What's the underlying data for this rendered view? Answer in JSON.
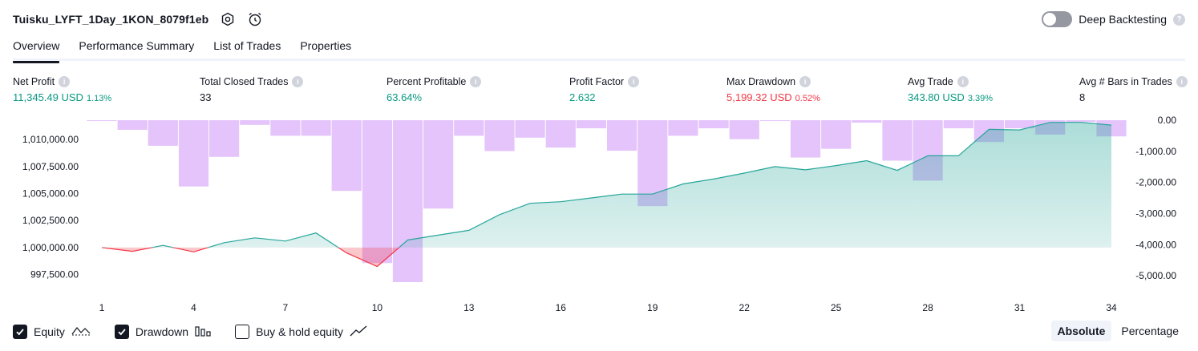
{
  "header": {
    "title": "Tuisku_LYFT_1Day_1KON_8079f1eb",
    "deep_backtesting_label": "Deep Backtesting",
    "help_glyph": "?"
  },
  "tabs": [
    {
      "label": "Overview",
      "active": true
    },
    {
      "label": "Performance Summary",
      "active": false
    },
    {
      "label": "List of Trades",
      "active": false
    },
    {
      "label": "Properties",
      "active": false
    }
  ],
  "metrics": {
    "info_glyph": "i",
    "net_profit": {
      "label": "Net Profit",
      "value": "11,345.49 USD",
      "pct": "1.13%"
    },
    "total_closed_trades": {
      "label": "Total Closed Trades",
      "value": "33"
    },
    "percent_profitable": {
      "label": "Percent Profitable",
      "value": "63.64%"
    },
    "profit_factor": {
      "label": "Profit Factor",
      "value": "2.632"
    },
    "max_drawdown": {
      "label": "Max Drawdown",
      "value": "5,199.32 USD",
      "pct": "0.52%"
    },
    "avg_trade": {
      "label": "Avg Trade",
      "value": "343.80 USD",
      "pct": "3.39%"
    },
    "avg_bars": {
      "label": "Avg # Bars in Trades",
      "value": "8"
    }
  },
  "colors": {
    "positive": "#089981",
    "negative": "#f23645",
    "drawdown_bar": "#ce93f8",
    "equity_fill": "#26a69a"
  },
  "chart_data": {
    "type": "line",
    "x": [
      1,
      2,
      3,
      4,
      5,
      6,
      7,
      8,
      9,
      10,
      11,
      12,
      13,
      14,
      15,
      16,
      17,
      18,
      19,
      20,
      21,
      22,
      23,
      24,
      25,
      26,
      27,
      28,
      29,
      30,
      31,
      32,
      33,
      34
    ],
    "x_ticks": [
      "1",
      "4",
      "7",
      "10",
      "13",
      "16",
      "19",
      "22",
      "25",
      "28",
      "31",
      "34"
    ],
    "baseline": 1000000,
    "series": [
      {
        "axis": "left",
        "values": [
          1000000,
          999650,
          1000200,
          999600,
          1000450,
          1000900,
          1000600,
          1001350,
          999500,
          998250,
          1000700,
          1001150,
          1001600,
          1003050,
          1004100,
          1004250,
          1004600,
          1004950,
          1004950,
          1005900,
          1006350,
          1006900,
          1007500,
          1007200,
          1007600,
          1008050,
          1007150,
          1008500,
          1008500,
          1010950,
          1010900,
          1011600,
          1011600,
          1011350
        ]
      },
      {
        "axis": "right",
        "values": [
          0,
          -310,
          -820,
          -2130,
          -1180,
          -150,
          -500,
          -500,
          -2270,
          -4590,
          -5199.32,
          -2840,
          -500,
          -990,
          -560,
          -880,
          -260,
          -980,
          -2760,
          -500,
          -260,
          -610,
          0,
          -1200,
          -920,
          -80,
          -1300,
          -1940,
          -260,
          -700,
          -260,
          -460,
          -60,
          -520
        ]
      }
    ],
    "y_left_ticks": [
      "1,010,000.00",
      "1,007,500.00",
      "1,005,000.00",
      "1,002,500.00",
      "1,000,000.00",
      "997,500.00"
    ],
    "y_left_tick_values": [
      1010000,
      1007500,
      1005000,
      1002500,
      1000000,
      997500
    ],
    "y_right_ticks": [
      "0.00",
      "-1,000.00",
      "-2,000.00",
      "-3,000.00",
      "-4,000.00",
      "-5,000.00"
    ],
    "y_right_tick_values": [
      0,
      -1000,
      -2000,
      -3000,
      -4000,
      -5000
    ],
    "ylim_left": [
      996800,
      1011800
    ],
    "ylim_right": [
      -5200,
      0
    ],
    "grid": false
  },
  "legend": [
    {
      "label": "Equity",
      "checked": true,
      "icon": "equity-line-icon"
    },
    {
      "label": "Drawdown",
      "checked": true,
      "icon": "drawdown-bars-icon"
    },
    {
      "label": "Buy & hold equity",
      "checked": false,
      "icon": "buy-hold-line-icon"
    }
  ],
  "scale": {
    "absolute": "Absolute",
    "percentage": "Percentage",
    "selected": "Absolute"
  }
}
